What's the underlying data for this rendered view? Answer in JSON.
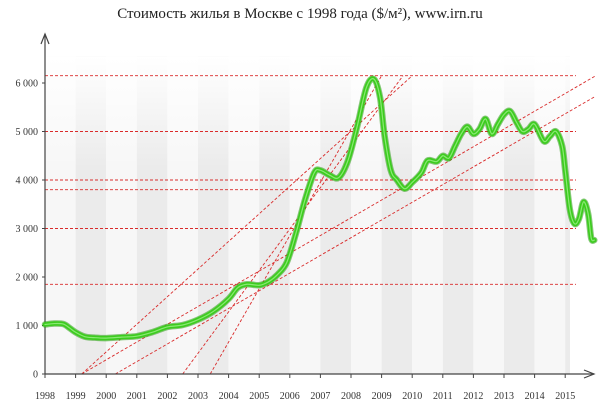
{
  "chart_data": {
    "type": "line",
    "title": "Стоимость жилья в Москве с 1998 года ($/м²), www.irn.ru",
    "xlabel": "",
    "ylabel": "",
    "x_range": [
      1998,
      2016.2
    ],
    "ylim": [
      0,
      6900
    ],
    "x_ticks": [
      "1998",
      "1999",
      "2000",
      "2001",
      "2002",
      "2003",
      "2004",
      "2005",
      "2006",
      "2007",
      "2008",
      "2009",
      "2010",
      "2011",
      "2012",
      "2013",
      "2014",
      "2015"
    ],
    "y_ticks": [
      "0",
      "1 000",
      "2 000",
      "3 000",
      "4 000",
      "5 000",
      "6 000"
    ],
    "grid": "alternating vertical year bands",
    "series": [
      {
        "color": "#3ccc1e",
        "points": [
          [
            1998.0,
            1020
          ],
          [
            1998.3,
            1040
          ],
          [
            1998.6,
            1030
          ],
          [
            1998.8,
            950
          ],
          [
            1999.0,
            860
          ],
          [
            1999.3,
            770
          ],
          [
            1999.6,
            750
          ],
          [
            2000.0,
            740
          ],
          [
            2000.5,
            760
          ],
          [
            2001.0,
            780
          ],
          [
            2001.5,
            860
          ],
          [
            2002.0,
            970
          ],
          [
            2002.5,
            1010
          ],
          [
            2003.0,
            1120
          ],
          [
            2003.5,
            1290
          ],
          [
            2004.0,
            1550
          ],
          [
            2004.3,
            1780
          ],
          [
            2004.6,
            1850
          ],
          [
            2005.0,
            1830
          ],
          [
            2005.3,
            1900
          ],
          [
            2005.6,
            2050
          ],
          [
            2005.9,
            2300
          ],
          [
            2006.2,
            2900
          ],
          [
            2006.5,
            3600
          ],
          [
            2006.8,
            4150
          ],
          [
            2007.0,
            4200
          ],
          [
            2007.3,
            4100
          ],
          [
            2007.6,
            4050
          ],
          [
            2007.9,
            4400
          ],
          [
            2008.2,
            5100
          ],
          [
            2008.5,
            5900
          ],
          [
            2008.75,
            6080
          ],
          [
            2008.95,
            5700
          ],
          [
            2009.1,
            4900
          ],
          [
            2009.3,
            4200
          ],
          [
            2009.5,
            4000
          ],
          [
            2009.75,
            3820
          ],
          [
            2010.0,
            3950
          ],
          [
            2010.3,
            4150
          ],
          [
            2010.5,
            4400
          ],
          [
            2010.8,
            4380
          ],
          [
            2011.0,
            4500
          ],
          [
            2011.2,
            4450
          ],
          [
            2011.4,
            4700
          ],
          [
            2011.6,
            4950
          ],
          [
            2011.8,
            5100
          ],
          [
            2012.0,
            4950
          ],
          [
            2012.2,
            5050
          ],
          [
            2012.4,
            5260
          ],
          [
            2012.6,
            4950
          ],
          [
            2012.8,
            5150
          ],
          [
            2013.0,
            5350
          ],
          [
            2013.2,
            5420
          ],
          [
            2013.4,
            5200
          ],
          [
            2013.6,
            5000
          ],
          [
            2013.8,
            5050
          ],
          [
            2014.0,
            5150
          ],
          [
            2014.3,
            4800
          ],
          [
            2014.5,
            4900
          ],
          [
            2014.7,
            5000
          ],
          [
            2014.9,
            4700
          ],
          [
            2015.0,
            4200
          ],
          [
            2015.15,
            3400
          ],
          [
            2015.3,
            3100
          ],
          [
            2015.45,
            3200
          ],
          [
            2015.6,
            3550
          ],
          [
            2015.75,
            3300
          ],
          [
            2015.85,
            2800
          ],
          [
            2015.95,
            2760
          ]
        ]
      }
    ],
    "horizontal_reference_lines": [
      6150,
      5000,
      4000,
      3800,
      3000,
      1850
    ],
    "diagonal_reference_lines": [
      {
        "from": [
          1999.2,
          0
        ],
        "to": [
          2010.0,
          6150
        ]
      },
      {
        "from": [
          2000.3,
          0
        ],
        "to": [
          2016.0,
          5730
        ]
      },
      {
        "from": [
          1999.2,
          0
        ],
        "to": [
          2016.0,
          6150
        ]
      },
      {
        "from": [
          2002.5,
          0
        ],
        "to": [
          2009.7,
          6150
        ]
      },
      {
        "from": [
          2003.4,
          0
        ],
        "to": [
          2009.0,
          6150
        ]
      }
    ],
    "colors": {
      "line": "#3ccc1e",
      "reference_lines": "#d92b2b",
      "band_dark": "#ebebeb",
      "band_light": "#f7f7f7",
      "axis": "#444444"
    }
  }
}
